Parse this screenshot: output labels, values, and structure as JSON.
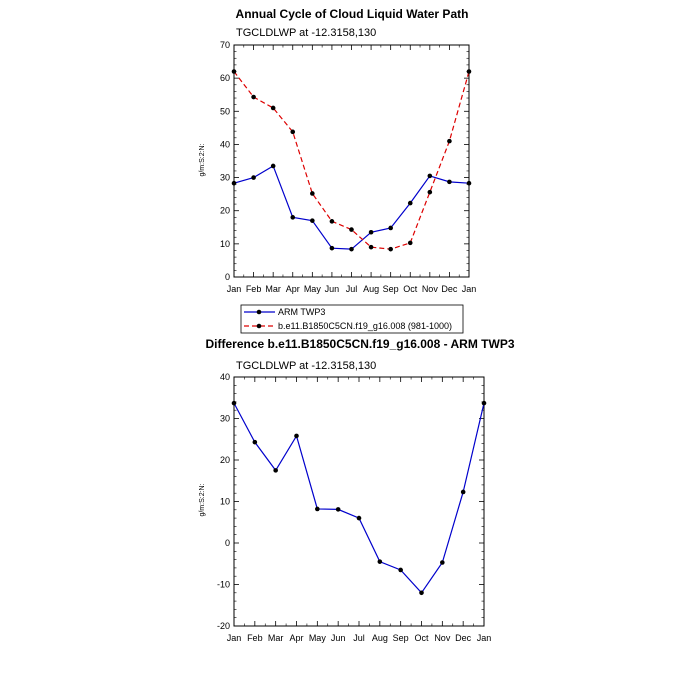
{
  "chart_data": [
    {
      "type": "line",
      "title": "Annual Cycle of Cloud Liquid Water Path",
      "subtitle": "TGCLDLWP at -12.3158,130",
      "xlabel": "",
      "ylabel": "g/m:S:2:N:",
      "categories": [
        "Jan",
        "Feb",
        "Mar",
        "Apr",
        "May",
        "Jun",
        "Jul",
        "Aug",
        "Sep",
        "Oct",
        "Nov",
        "Dec",
        "Jan"
      ],
      "ylim": [
        0,
        70
      ],
      "yticks": [
        0,
        10,
        20,
        30,
        40,
        50,
        60,
        70
      ],
      "series": [
        {
          "name": "ARM TWP3",
          "color": "#0000cc",
          "dash": "solid",
          "values": [
            28.3,
            30.0,
            33.5,
            18.0,
            17.0,
            8.7,
            8.4,
            13.5,
            14.8,
            22.3,
            30.5,
            28.7,
            28.3
          ]
        },
        {
          "name": "b.e11.B1850C5CN.f19_g16.008 (981-1000)",
          "color": "#dd0000",
          "dash": "dashed",
          "values": [
            62.0,
            54.3,
            51.0,
            43.8,
            25.2,
            16.8,
            14.3,
            9.0,
            8.4,
            10.3,
            25.6,
            41.0,
            62.0
          ]
        }
      ],
      "legend": [
        "ARM TWP3",
        "b.e11.B1850C5CN.f19_g16.008 (981-1000)"
      ]
    },
    {
      "type": "line",
      "title": "Difference b.e11.B1850C5CN.f19_g16.008 - ARM TWP3",
      "subtitle": "TGCLDLWP at -12.3158,130",
      "xlabel": "",
      "ylabel": "g/m:S:2:N:",
      "categories": [
        "Jan",
        "Feb",
        "Mar",
        "Apr",
        "May",
        "Jun",
        "Jul",
        "Aug",
        "Sep",
        "Oct",
        "Nov",
        "Dec",
        "Jan"
      ],
      "ylim": [
        -20,
        40
      ],
      "yticks": [
        -20,
        -10,
        0,
        10,
        20,
        30,
        40
      ],
      "series": [
        {
          "name": "Difference",
          "color": "#0000cc",
          "dash": "solid",
          "values": [
            33.7,
            24.3,
            17.5,
            25.8,
            8.2,
            8.1,
            6.0,
            -4.5,
            -6.5,
            -12.0,
            -4.7,
            12.3,
            33.7
          ]
        }
      ]
    }
  ]
}
